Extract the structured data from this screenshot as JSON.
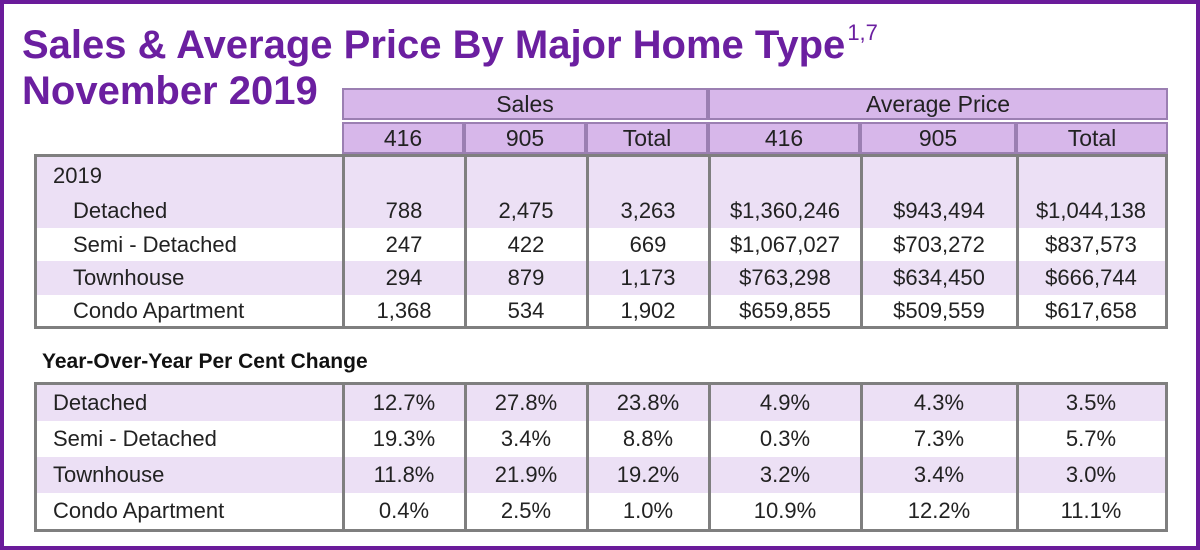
{
  "title": {
    "line1": "Sales & Average Price By Major Home Type",
    "superscript": "1,7",
    "line2": "November 2019"
  },
  "headers": {
    "sales_group": "Sales",
    "price_group": "Average Price",
    "columns": [
      "416",
      "905",
      "Total",
      "416",
      "905",
      "Total"
    ]
  },
  "year_label": "2019",
  "table_2019": [
    {
      "type": "Detached",
      "values": [
        "788",
        "2,475",
        "3,263",
        "$1,360,246",
        "$943,494",
        "$1,044,138"
      ]
    },
    {
      "type": "Semi - Detached",
      "values": [
        "247",
        "422",
        "669",
        "$1,067,027",
        "$703,272",
        "$837,573"
      ]
    },
    {
      "type": "Townhouse",
      "values": [
        "294",
        "879",
        "1,173",
        "$763,298",
        "$634,450",
        "$666,744"
      ]
    },
    {
      "type": "Condo Apartment",
      "values": [
        "1,368",
        "534",
        "1,902",
        "$659,855",
        "$509,559",
        "$617,658"
      ]
    }
  ],
  "yoy_title": "Year-Over-Year Per Cent Change",
  "table_yoy": [
    {
      "type": "Detached",
      "values": [
        "12.7%",
        "27.8%",
        "23.8%",
        "4.9%",
        "4.3%",
        "3.5%"
      ]
    },
    {
      "type": "Semi - Detached",
      "values": [
        "19.3%",
        "3.4%",
        "8.8%",
        "0.3%",
        "7.3%",
        "5.7%"
      ]
    },
    {
      "type": "Townhouse",
      "values": [
        "11.8%",
        "21.9%",
        "19.2%",
        "3.2%",
        "3.4%",
        "3.0%"
      ]
    },
    {
      "type": "Condo Apartment",
      "values": [
        "0.4%",
        "2.5%",
        "1.0%",
        "10.9%",
        "12.2%",
        "11.1%"
      ]
    }
  ],
  "colors": {
    "title": "#6b1fa0",
    "border": "#6a1b9a",
    "header_fill": "#d7b7ea",
    "band_fill": "#ece0f5",
    "grid": "#7f7f7f"
  },
  "chart_data": {
    "type": "table",
    "title": "Sales & Average Price By Major Home Type",
    "subtitle": "November 2019",
    "column_groups": [
      {
        "name": "Sales",
        "columns": [
          "416",
          "905",
          "Total"
        ]
      },
      {
        "name": "Average Price",
        "columns": [
          "416",
          "905",
          "Total"
        ]
      }
    ],
    "row_categories": [
      "Detached",
      "Semi - Detached",
      "Townhouse",
      "Condo Apartment"
    ],
    "sales_2019": {
      "416": [
        788,
        247,
        294,
        1368
      ],
      "905": [
        2475,
        422,
        879,
        534
      ],
      "Total": [
        3263,
        669,
        1173,
        1902
      ]
    },
    "average_price_2019": {
      "416": [
        1360246,
        1067027,
        763298,
        659855
      ],
      "905": [
        943494,
        703272,
        634450,
        509559
      ],
      "Total": [
        1044138,
        837573,
        666744,
        617658
      ]
    },
    "yoy_change_pct": {
      "sales_416": [
        12.7,
        19.3,
        11.8,
        0.4
      ],
      "sales_905": [
        27.8,
        3.4,
        21.9,
        2.5
      ],
      "sales_total": [
        23.8,
        8.8,
        19.2,
        1.0
      ],
      "price_416": [
        4.9,
        0.3,
        3.2,
        10.9
      ],
      "price_905": [
        4.3,
        7.3,
        3.4,
        12.2
      ],
      "price_total": [
        3.5,
        5.7,
        3.0,
        11.1
      ]
    }
  }
}
